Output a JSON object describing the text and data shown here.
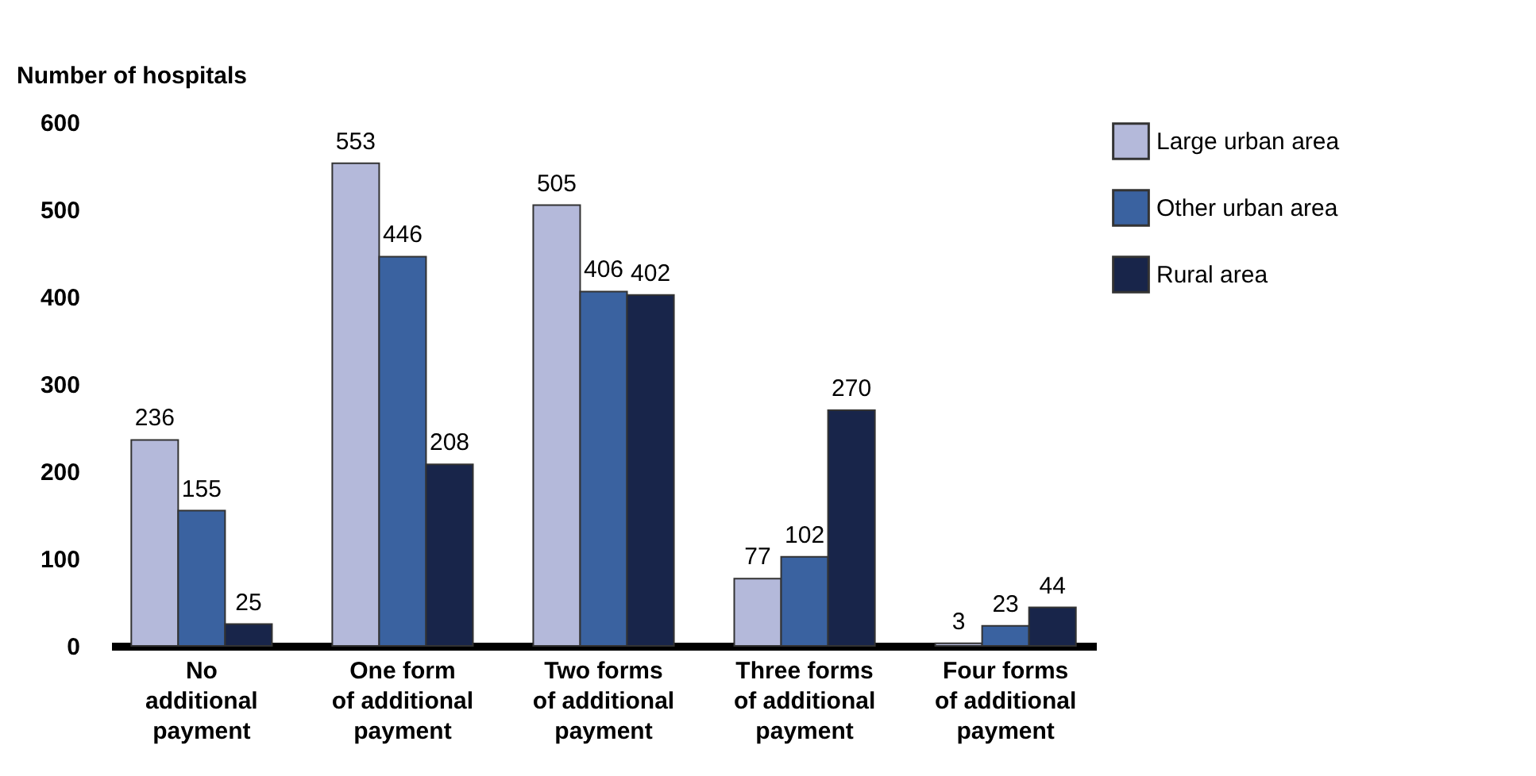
{
  "chart_data": {
    "type": "bar",
    "ylabel": "Number of hospitals",
    "categories": [
      "No\nadditional\npayment",
      "One form\nof additional\npayment",
      "Two forms\nof additional\npayment",
      "Three forms\nof additional\npayment",
      "Four forms\nof additional\npayment"
    ],
    "series": [
      {
        "name": "Large urban area",
        "color": "#b4b9da",
        "values": [
          236,
          553,
          505,
          77,
          3
        ]
      },
      {
        "name": "Other urban area",
        "color": "#3a62a0",
        "values": [
          155,
          446,
          406,
          102,
          23
        ]
      },
      {
        "name": "Rural area",
        "color": "#18254a",
        "values": [
          25,
          208,
          402,
          270,
          44
        ]
      }
    ],
    "ylim": [
      0,
      600
    ],
    "yticks": [
      0,
      100,
      200,
      300,
      400,
      500,
      600
    ],
    "grid": false,
    "legend": "top right",
    "data_labels": true
  }
}
